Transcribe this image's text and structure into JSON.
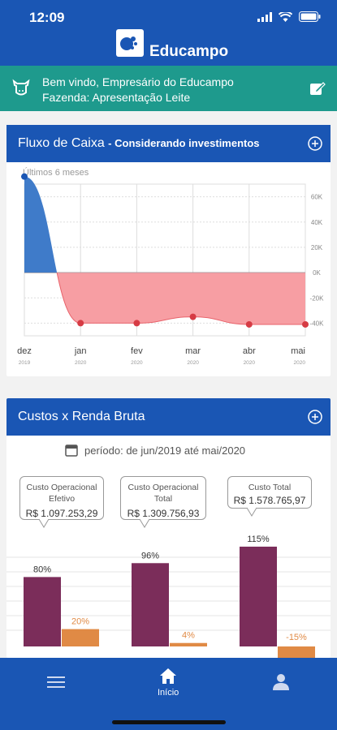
{
  "status_bar": {
    "time": "12:09"
  },
  "app": {
    "brand": "Educampo"
  },
  "welcome": {
    "line1": "Bem vindo,  Empresário do Educampo",
    "line2": "Fazenda:  Apresentação Leite"
  },
  "cash_flow": {
    "title": "Fluxo de Caixa",
    "subtitle": "- Considerando investimentos",
    "period": "Últimos 6 meses",
    "y_ticks": [
      "60K",
      "40K",
      "20K",
      "0K",
      "-20K",
      "-40K"
    ],
    "months": [
      "dez",
      "jan",
      "fev",
      "mar",
      "abr",
      "mai"
    ],
    "years": [
      "2019",
      "2020",
      "2020",
      "2020",
      "2020",
      "2020"
    ]
  },
  "costs": {
    "title": "Custos x Renda Bruta",
    "period_prefix": "período: de jun/2019  até  mai/2020",
    "tooltips": [
      {
        "label": "Custo Operacional Efetivo",
        "value": "R$ 1.097.253,29"
      },
      {
        "label": "Custo Operacional Total",
        "value": "R$ 1.309.756,93"
      },
      {
        "label": "Custo Total",
        "value": "R$ 1.578.765,97"
      }
    ]
  },
  "nav": {
    "home_label": "Início"
  },
  "colors": {
    "primary": "#1a56b4",
    "teal": "#1e9a8d",
    "cost_bar": "#7b2d5a",
    "revenue_bar": "#e08a45"
  },
  "chart_data": [
    {
      "type": "area",
      "title": "Fluxo de Caixa - Considerando investimentos",
      "subtitle": "Últimos 6 meses",
      "categories": [
        "dez 2019",
        "jan 2020",
        "fev 2020",
        "mar 2020",
        "abr 2020",
        "mai 2020"
      ],
      "values": [
        76000,
        -40000,
        -40000,
        -35000,
        -41000,
        -41000
      ],
      "ylim": [
        -50000,
        70000
      ],
      "grid": true
    },
    {
      "type": "bar",
      "title": "Custos x Renda Bruta",
      "categories": [
        "Custo Operacional Efetivo",
        "Custo Operacional Total",
        "Custo Total"
      ],
      "series": [
        {
          "values": [
            80,
            96,
            115
          ],
          "labels": [
            "80%",
            "96%",
            "115%"
          ]
        },
        {
          "values": [
            20,
            4,
            -15
          ],
          "labels": [
            "20%",
            "4%",
            "-15%"
          ]
        }
      ]
    }
  ]
}
